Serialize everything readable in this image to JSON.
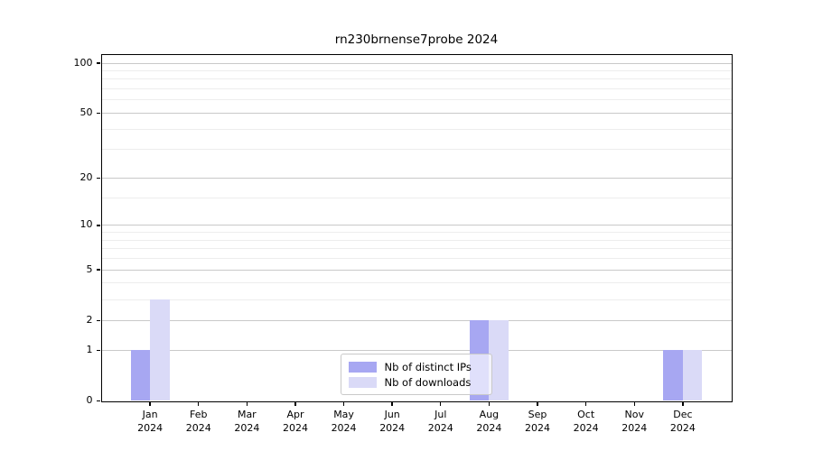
{
  "chart_data": {
    "type": "bar",
    "title": "rn230brnense7probe 2024",
    "categories": [
      "Jan",
      "Feb",
      "Mar",
      "Apr",
      "May",
      "Jun",
      "Jul",
      "Aug",
      "Sep",
      "Oct",
      "Nov",
      "Dec"
    ],
    "category_year": "2024",
    "series": [
      {
        "name": "Nb of distinct IPs",
        "color": "#a7a7f2",
        "values": [
          1,
          0,
          0,
          0,
          0,
          0,
          0,
          2,
          0,
          0,
          0,
          1
        ]
      },
      {
        "name": "Nb of downloads",
        "color": "#dadaf7",
        "values": [
          3,
          0,
          0,
          0,
          0,
          0,
          0,
          2,
          0,
          0,
          0,
          1
        ]
      }
    ],
    "xlabel": "",
    "ylabel": "",
    "y_axis": {
      "scale": "log10(value+1)",
      "major_ticks": [
        0,
        1,
        2,
        5,
        10,
        20,
        50,
        100
      ],
      "minor_gridlines": [
        3,
        4,
        6,
        7,
        8,
        9,
        15,
        30,
        40,
        60,
        70,
        80,
        90
      ],
      "top_value": 112
    },
    "grid": {
      "major_color": "#c9c9c9",
      "minor_color": "#ededed"
    },
    "legend": {
      "position": "lower-center"
    }
  }
}
